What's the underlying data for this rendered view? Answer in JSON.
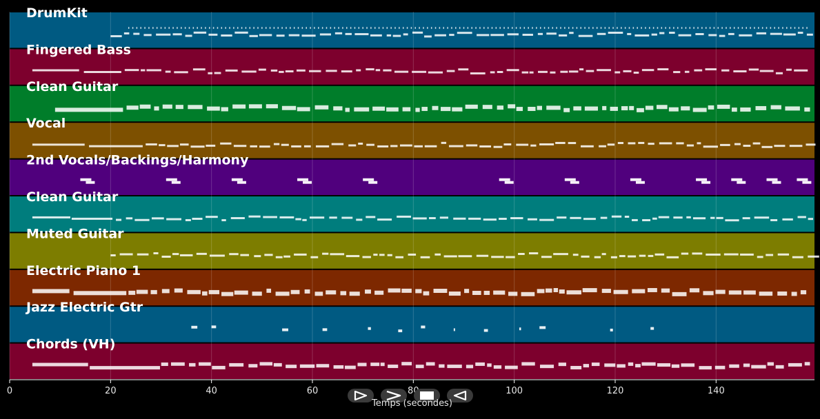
{
  "chart_data": {
    "type": "piano-roll",
    "xlabel": "Temps (secondes)",
    "xlim": [
      0,
      159.5
    ],
    "xticks": [
      0,
      20,
      40,
      60,
      80,
      100,
      120,
      140
    ],
    "grid": true,
    "tracks": [
      {
        "name": "DrumKit",
        "color": "#005a82"
      },
      {
        "name": "Fingered Bass",
        "color": "#7d002d"
      },
      {
        "name": "Clean Guitar",
        "color": "#007d2a"
      },
      {
        "name": "Vocal",
        "color": "#7d5000"
      },
      {
        "name": "2nd Vocals/Backings/Harmony",
        "color": "#50007d"
      },
      {
        "name": "Clean Guitar",
        "color": "#007d7d"
      },
      {
        "name": "Muted Guitar",
        "color": "#7d7d00"
      },
      {
        "name": "Electric Piano 1",
        "color": "#7d2800"
      },
      {
        "name": "Jazz Electric Gtr",
        "color": "#005a82"
      },
      {
        "name": "Chords (VH)",
        "color": "#7d002d"
      }
    ]
  },
  "controls": [
    {
      "name": "play",
      "icon": "play-icon"
    },
    {
      "name": "fast-forward",
      "icon": "forward-icon"
    },
    {
      "name": "stop",
      "icon": "stop-icon"
    },
    {
      "name": "rewind",
      "icon": "rewind-icon"
    }
  ]
}
